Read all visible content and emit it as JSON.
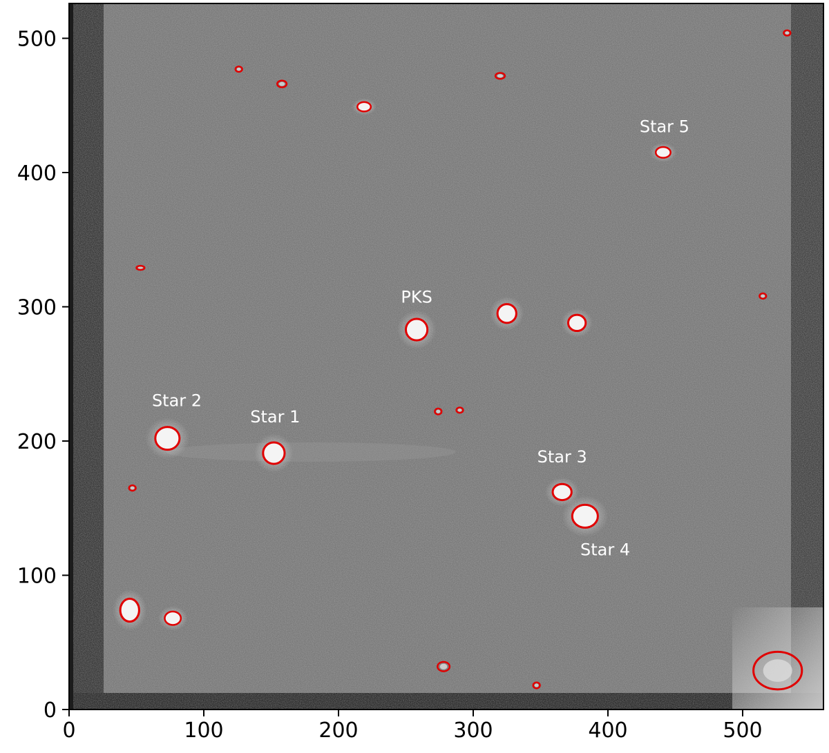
{
  "image": {
    "description_type": "astronomical CCD frame with marked sources",
    "x_ticks": [
      "0",
      "100",
      "200",
      "300",
      "400",
      "500"
    ],
    "y_ticks": [
      "0",
      "100",
      "200",
      "300",
      "400",
      "500"
    ],
    "x_range": [
      0,
      560
    ],
    "y_range": [
      0,
      525
    ],
    "marker_color": "#e00000",
    "label_color": "#ffffff"
  },
  "labels": [
    {
      "text": "PKS",
      "x": 258,
      "y": 303
    },
    {
      "text": "Star 1",
      "x": 153,
      "y": 214
    },
    {
      "text": "Star 2",
      "x": 80,
      "y": 226
    },
    {
      "text": "Star 3",
      "x": 366,
      "y": 184
    },
    {
      "text": "Star 4",
      "x": 398,
      "y": 115
    },
    {
      "text": "Star 5",
      "x": 442,
      "y": 430
    }
  ],
  "sources": [
    {
      "x": 258,
      "y": 283,
      "rx": 8,
      "ry": 8,
      "fill": true
    },
    {
      "x": 325,
      "y": 295,
      "rx": 7,
      "ry": 7,
      "fill": true
    },
    {
      "x": 377,
      "y": 288,
      "rx": 6.5,
      "ry": 6,
      "fill": true
    },
    {
      "x": 73,
      "y": 202,
      "rx": 9,
      "ry": 8.5,
      "fill": true
    },
    {
      "x": 152,
      "y": 191,
      "rx": 8,
      "ry": 8,
      "fill": true
    },
    {
      "x": 366,
      "y": 162,
      "rx": 7,
      "ry": 6,
      "fill": true
    },
    {
      "x": 383,
      "y": 144,
      "rx": 9.5,
      "ry": 8.5,
      "fill": true
    },
    {
      "x": 45,
      "y": 74,
      "rx": 7,
      "ry": 8.5,
      "fill": true
    },
    {
      "x": 77,
      "y": 68,
      "rx": 6,
      "ry": 5,
      "fill": true
    },
    {
      "x": 441,
      "y": 415,
      "rx": 5.5,
      "ry": 4,
      "fill": true
    },
    {
      "x": 219,
      "y": 449,
      "rx": 5,
      "ry": 3.5,
      "fill": true
    },
    {
      "x": 158,
      "y": 466,
      "rx": 3.5,
      "ry": 2.5,
      "fill": false
    },
    {
      "x": 126,
      "y": 477,
      "rx": 2.5,
      "ry": 2,
      "fill": false
    },
    {
      "x": 320,
      "y": 472,
      "rx": 3.5,
      "ry": 2.2,
      "fill": false
    },
    {
      "x": 533,
      "y": 504,
      "rx": 2.5,
      "ry": 2,
      "fill": false
    },
    {
      "x": 53,
      "y": 329,
      "rx": 3,
      "ry": 1.5,
      "fill": false
    },
    {
      "x": 515,
      "y": 308,
      "rx": 2.5,
      "ry": 2,
      "fill": false
    },
    {
      "x": 274,
      "y": 222,
      "rx": 2.5,
      "ry": 2.2,
      "fill": false
    },
    {
      "x": 290,
      "y": 223,
      "rx": 2.5,
      "ry": 2,
      "fill": false
    },
    {
      "x": 47,
      "y": 165,
      "rx": 2.5,
      "ry": 2,
      "fill": false
    },
    {
      "x": 278,
      "y": 32,
      "rx": 4.5,
      "ry": 3.5,
      "fill": false
    },
    {
      "x": 347,
      "y": 18,
      "rx": 2.5,
      "ry": 2.2,
      "fill": false
    },
    {
      "x": 526,
      "y": 29,
      "rx": 18,
      "ry": 14,
      "fill": false
    }
  ]
}
